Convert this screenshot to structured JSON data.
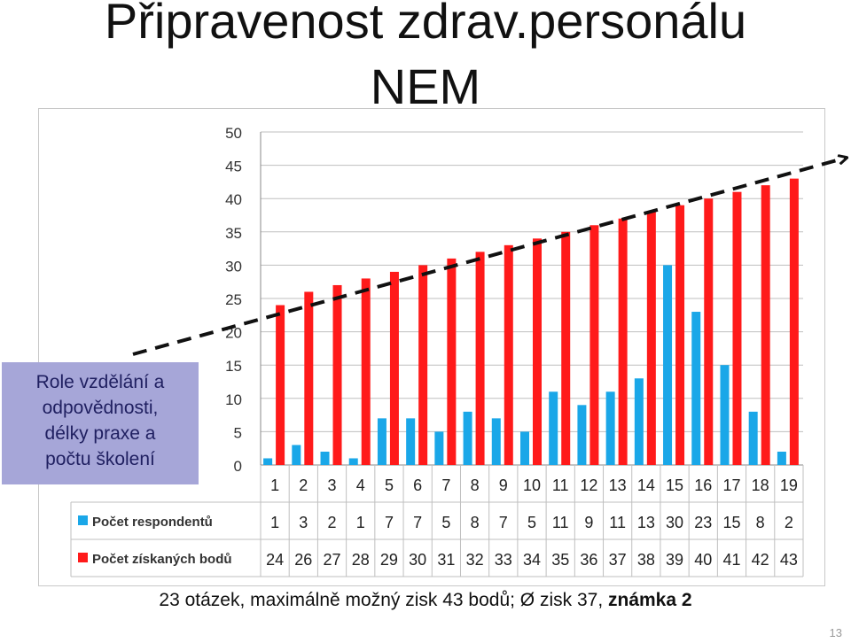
{
  "slide": {
    "title_line1": "Připravenost zdrav.personálu",
    "title_line2": "NEM",
    "callout_lines": [
      "Role vzdělání a",
      "odpovědnosti,",
      "délky praxe a",
      "počtu školení"
    ],
    "footer_text": "23 otázek, maximálně možný zisk 43 bodů;  Ø zisk 37, ",
    "footer_bold": "známka  2",
    "page_number": "13"
  },
  "chart_data": {
    "type": "bar",
    "categories": [
      "1",
      "2",
      "3",
      "4",
      "5",
      "6",
      "7",
      "8",
      "9",
      "10",
      "11",
      "12",
      "13",
      "14",
      "15",
      "16",
      "17",
      "18",
      "19"
    ],
    "series": [
      {
        "name": "Počet respondentů",
        "color": "#1aa7e8",
        "values": [
          1,
          3,
          2,
          1,
          7,
          7,
          5,
          8,
          7,
          5,
          11,
          9,
          11,
          13,
          30,
          23,
          15,
          8,
          2
        ]
      },
      {
        "name": "Počet získaných bodů",
        "color": "#ff1a1a",
        "values": [
          24,
          26,
          27,
          28,
          29,
          30,
          31,
          32,
          33,
          34,
          35,
          36,
          37,
          38,
          39,
          40,
          41,
          42,
          43
        ]
      }
    ],
    "ylim": [
      0,
      50
    ],
    "yticks": [
      0,
      5,
      10,
      15,
      20,
      25,
      30,
      35,
      40,
      45,
      50
    ],
    "grid": true,
    "legend": "bottom-table"
  }
}
